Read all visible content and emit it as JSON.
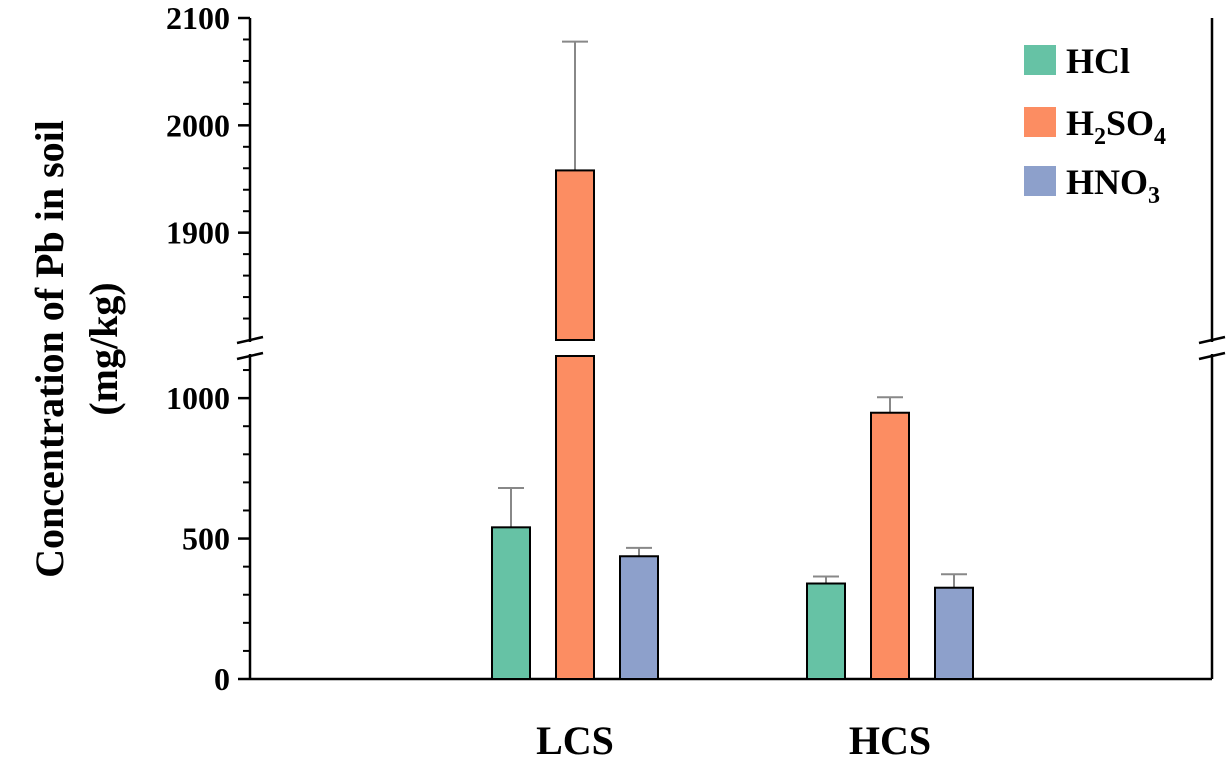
{
  "chart_data": {
    "type": "bar",
    "categories": [
      "LCS",
      "HCS"
    ],
    "series": [
      {
        "name": "HCl",
        "name_parts": [
          [
            "HCl",
            ""
          ]
        ],
        "color": "#66c2a5",
        "values": [
          540,
          340
        ],
        "errors": [
          140,
          25
        ]
      },
      {
        "name": "H2SO4",
        "name_parts": [
          [
            "H",
            ""
          ],
          [
            "2",
            "sub"
          ],
          [
            "SO",
            ""
          ],
          [
            "4",
            "sub"
          ]
        ],
        "color": "#fc8d62",
        "values": [
          1958,
          948
        ],
        "errors": [
          120,
          55
        ]
      },
      {
        "name": "HNO3",
        "name_parts": [
          [
            "HNO",
            ""
          ],
          [
            "3",
            "sub"
          ]
        ],
        "color": "#8da0cb",
        "values": [
          437,
          325
        ],
        "errors": [
          30,
          48
        ]
      }
    ],
    "ylabel_lines": [
      "Concentration of Pb in soil",
      "(mg/kg)"
    ],
    "xlabel": "",
    "broken_axis": {
      "lower_range": [
        0,
        1150
      ],
      "upper_range": [
        1800,
        2100
      ]
    },
    "y_tick_labels": [
      "0",
      "500",
      "1000",
      "1900",
      "2000",
      "2100"
    ],
    "y_ticks_lower": [
      0,
      500,
      1000
    ],
    "y_ticks_upper": [
      1900,
      2000,
      2100
    ],
    "legend_position": "top-right",
    "grid": false
  }
}
